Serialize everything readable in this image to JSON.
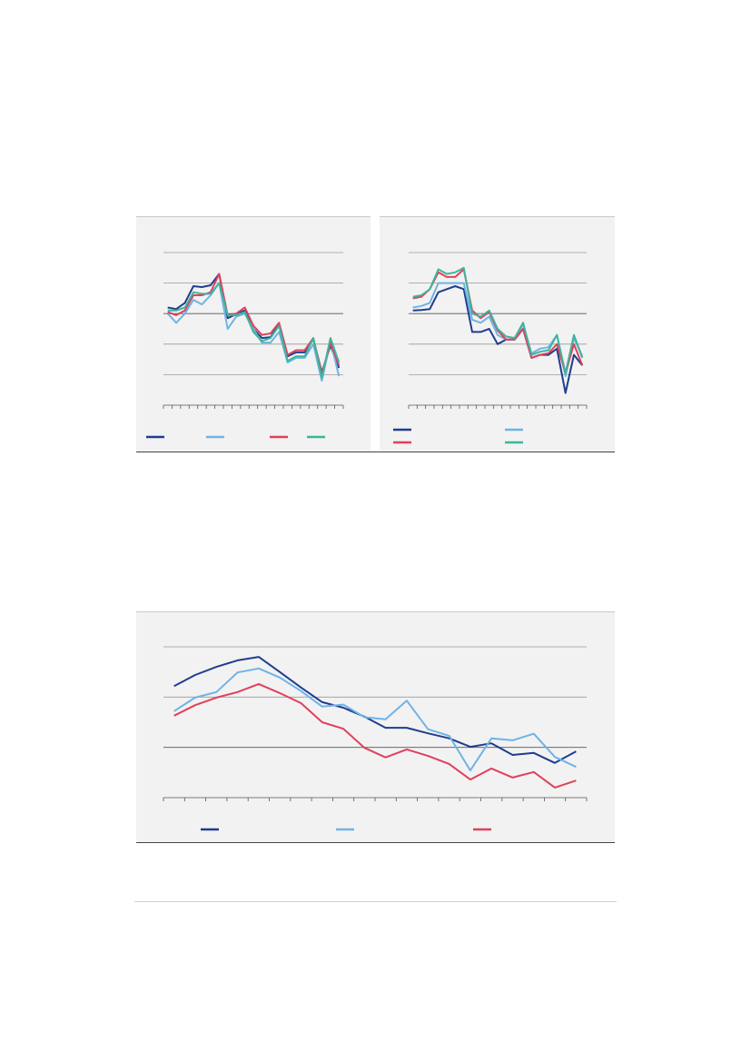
{
  "chart_data": [
    {
      "type": "line",
      "ylim": [
        0,
        5
      ],
      "series": [
        {
          "color": "#1f3d8f",
          "values": [
            3.2,
            3.15,
            3.35,
            3.9,
            3.87,
            3.93,
            4.3,
            2.85,
            2.98,
            3.1,
            2.5,
            2.2,
            2.23,
            2.65,
            1.6,
            1.73,
            1.73,
            2.17,
            1.07,
            1.96,
            1.22
          ]
        },
        {
          "color": "#6fb3e6",
          "values": [
            3.0,
            2.7,
            3.0,
            3.45,
            3.3,
            3.6,
            4.0,
            2.5,
            2.9,
            3.0,
            2.5,
            2.05,
            2.05,
            2.4,
            1.4,
            1.55,
            1.55,
            2.0,
            0.8,
            2.1,
            0.95
          ]
        },
        {
          "color": "#e0405c",
          "values": [
            3.05,
            2.95,
            3.1,
            3.6,
            3.6,
            3.7,
            4.3,
            2.95,
            3.0,
            3.2,
            2.6,
            2.3,
            2.35,
            2.7,
            1.65,
            1.8,
            1.8,
            2.2,
            1.0,
            2.05,
            1.3
          ]
        },
        {
          "color": "#3db59a",
          "values": [
            3.1,
            3.1,
            3.2,
            3.7,
            3.65,
            3.65,
            4.0,
            2.95,
            2.95,
            3.05,
            2.4,
            2.1,
            2.2,
            2.6,
            1.45,
            1.6,
            1.6,
            2.2,
            0.9,
            2.2,
            1.4
          ]
        }
      ]
    },
    {
      "type": "line",
      "ylim": [
        0,
        5
      ],
      "series": [
        {
          "color": "#1f3d8f",
          "values": [
            3.1,
            3.12,
            3.15,
            3.7,
            3.8,
            3.9,
            3.8,
            2.4,
            2.4,
            2.5,
            2.0,
            2.15,
            2.15,
            2.5,
            1.55,
            1.65,
            1.65,
            1.85,
            0.4,
            1.65,
            1.3
          ]
        },
        {
          "color": "#6fb3e6",
          "values": [
            3.2,
            3.25,
            3.35,
            4.0,
            4.0,
            4.0,
            4.0,
            2.8,
            2.7,
            2.9,
            2.3,
            2.15,
            2.15,
            2.65,
            1.7,
            1.85,
            1.9,
            2.3,
            0.95,
            2.2,
            1.6
          ]
        },
        {
          "color": "#e0405c",
          "values": [
            3.5,
            3.55,
            3.8,
            4.35,
            4.2,
            4.2,
            4.45,
            3.1,
            2.85,
            3.05,
            2.45,
            2.15,
            2.15,
            2.5,
            1.55,
            1.65,
            1.7,
            2.0,
            1.05,
            2.0,
            1.3
          ]
        },
        {
          "color": "#3db59a",
          "values": [
            3.55,
            3.6,
            3.8,
            4.45,
            4.3,
            4.35,
            4.5,
            3.0,
            2.9,
            3.1,
            2.5,
            2.25,
            2.2,
            2.7,
            1.65,
            1.75,
            1.8,
            2.3,
            1.05,
            2.3,
            1.55
          ]
        }
      ]
    },
    {
      "type": "line",
      "ylim": [
        0,
        3
      ],
      "series": [
        {
          "color": "#1f3d8f",
          "values": [
            2.22,
            2.44,
            2.6,
            2.73,
            2.8,
            2.5,
            2.19,
            1.9,
            1.79,
            1.61,
            1.39,
            1.39,
            1.28,
            1.18,
            1.01,
            1.08,
            0.85,
            0.89,
            0.69,
            0.92
          ]
        },
        {
          "color": "#6fb3e6",
          "values": [
            1.72,
            1.99,
            2.1,
            2.49,
            2.57,
            2.39,
            2.12,
            1.81,
            1.85,
            1.6,
            1.56,
            1.93,
            1.36,
            1.23,
            0.54,
            1.18,
            1.14,
            1.27,
            0.81,
            0.61
          ]
        },
        {
          "color": "#e0405c",
          "values": [
            1.63,
            1.84,
            1.99,
            2.1,
            2.26,
            2.08,
            1.88,
            1.5,
            1.37,
            0.99,
            0.8,
            0.96,
            0.83,
            0.67,
            0.36,
            0.58,
            0.4,
            0.51,
            0.2,
            0.34
          ]
        }
      ]
    }
  ]
}
